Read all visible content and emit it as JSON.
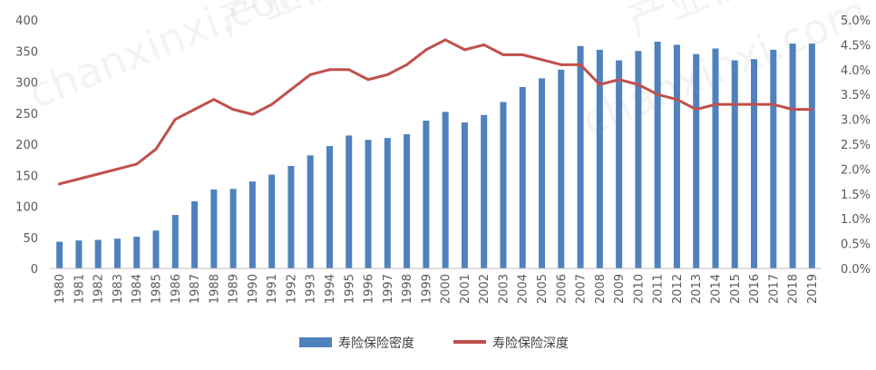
{
  "chart_data": {
    "type": "bar",
    "categories": [
      "1980",
      "1981",
      "1982",
      "1983",
      "1984",
      "1985",
      "1986",
      "1987",
      "1988",
      "1989",
      "1990",
      "1991",
      "1992",
      "1993",
      "1994",
      "1995",
      "1996",
      "1997",
      "1998",
      "1999",
      "2000",
      "2001",
      "2002",
      "2003",
      "2004",
      "2005",
      "2006",
      "2007",
      "2008",
      "2009",
      "2010",
      "2011",
      "2012",
      "2013",
      "2014",
      "2015",
      "2016",
      "2017",
      "2018",
      "2019"
    ],
    "series": [
      {
        "name": "寿险保险密度",
        "type": "bar",
        "axis": "left",
        "color": "#4F81BD",
        "values": [
          43,
          45,
          46,
          48,
          51,
          61,
          86,
          108,
          127,
          128,
          140,
          151,
          165,
          182,
          197,
          214,
          207,
          210,
          216,
          238,
          252,
          235,
          247,
          268,
          292,
          306,
          320,
          358,
          352,
          335,
          350,
          365,
          360,
          345,
          354,
          335,
          337,
          352,
          362,
          362
        ]
      },
      {
        "name": "寿险保险深度",
        "type": "line",
        "axis": "right",
        "color": "#C0504D",
        "values": [
          1.7,
          1.8,
          1.9,
          2.0,
          2.1,
          2.4,
          3.0,
          3.2,
          3.4,
          3.2,
          3.1,
          3.3,
          3.6,
          3.9,
          4.0,
          4.0,
          3.8,
          3.9,
          4.1,
          4.4,
          4.6,
          4.4,
          4.5,
          4.3,
          4.3,
          4.2,
          4.1,
          4.1,
          3.7,
          3.8,
          3.7,
          3.5,
          3.4,
          3.2,
          3.3,
          3.3,
          3.3,
          3.3,
          3.2,
          3.2
        ]
      }
    ],
    "y_left": {
      "min": 0,
      "max": 400,
      "ticks": [
        "0",
        "50",
        "100",
        "150",
        "200",
        "250",
        "300",
        "350",
        "400"
      ]
    },
    "y_right": {
      "min": 0,
      "max": 5.0,
      "ticks": [
        "0.0%",
        "0.5%",
        "1.0%",
        "1.5%",
        "2.0%",
        "2.5%",
        "3.0%",
        "3.5%",
        "4.0%",
        "4.5%",
        "5.0%"
      ]
    },
    "grid": false,
    "legend_position": "bottom",
    "legend": [
      "寿险保险密度",
      "寿险保险深度"
    ]
  },
  "watermark": [
    "chanxinxi.com",
    "产业信息网"
  ]
}
